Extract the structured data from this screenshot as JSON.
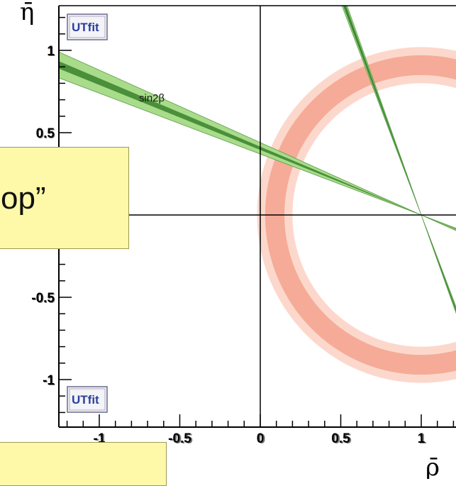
{
  "chart_data": {
    "type": "scatter",
    "xlabel": "ρ̄",
    "ylabel": "η̄",
    "xlim": [
      -1.25,
      1.25
    ],
    "ylim": [
      -1.25,
      1.25
    ],
    "x_ticks": [
      "-1",
      "-0.5",
      "0",
      "0.5",
      "1"
    ],
    "x_tick_values": [
      -1,
      -0.5,
      0,
      0.5,
      1
    ],
    "y_ticks": [
      "1",
      "0.5",
      "0",
      "-0.5",
      "-1"
    ],
    "y_tick_values": [
      1,
      0.5,
      0,
      -0.5,
      -1
    ],
    "logo_text": "UTfit",
    "sin2beta_label": "sin2β",
    "constraints": {
      "sin2beta": {
        "apex": [
          1.0,
          0.0
        ],
        "slope_inner": [
          -0.395,
          -0.415
        ],
        "slope_outer": [
          -0.37,
          -0.44
        ],
        "color_inner": "#4a8f3a",
        "color_outer": "#a8dc8a"
      },
      "steep_band": {
        "apex": [
          1.0,
          0.0
        ],
        "slope_inner": [
          -2.62,
          -2.72
        ],
        "slope_outer": [
          -2.58,
          -2.76
        ],
        "color_inner": "#3e8a33",
        "color_outer": "#a8dc8a"
      },
      "ring": {
        "center": [
          1.0,
          0.0
        ],
        "radius_inner_band": [
          0.85,
          0.97
        ],
        "radius_outer_band": [
          0.8,
          1.02
        ],
        "color_inner": "#f5ab97",
        "color_outer": "#fcd8cc"
      }
    }
  },
  "callouts": {
    "top_text": "op”",
    "bottom_text": ""
  }
}
